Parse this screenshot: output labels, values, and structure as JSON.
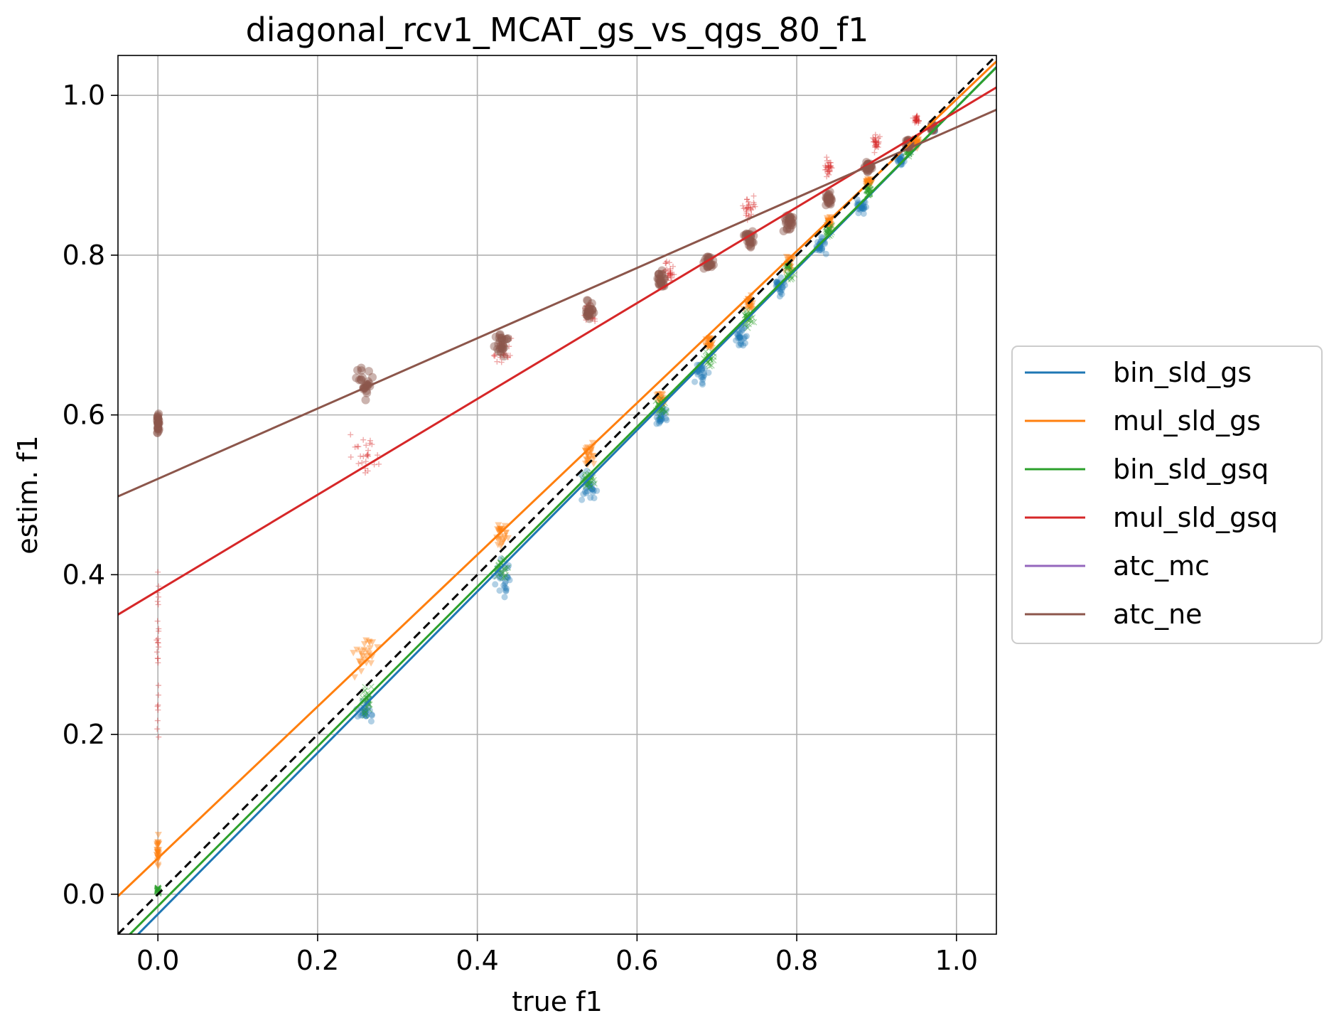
{
  "chart_data": {
    "type": "scatter",
    "title": "diagonal_rcv1_MCAT_gs_vs_qgs_80_f1",
    "xlabel": "true f1",
    "ylabel": "estim. f1",
    "xlim": [
      -0.05,
      1.05
    ],
    "ylim": [
      -0.05,
      1.05
    ],
    "x_ticks": [
      0.0,
      0.2,
      0.4,
      0.6,
      0.8,
      1.0
    ],
    "y_ticks": [
      0.0,
      0.2,
      0.4,
      0.6,
      0.8,
      1.0
    ],
    "x_tick_labels": [
      "0.0",
      "0.2",
      "0.4",
      "0.6",
      "0.8",
      "1.0"
    ],
    "y_tick_labels": [
      "0.0",
      "0.2",
      "0.4",
      "0.6",
      "0.8",
      "1.0"
    ],
    "grid": true,
    "legend_position": "right, outside plot",
    "diagonal_reference": {
      "style": "black dashed",
      "from": [
        -0.05,
        -0.05
      ],
      "to": [
        1.05,
        1.05
      ]
    },
    "series": [
      {
        "name": "bin_sld_gs",
        "color": "#1f77b4",
        "marker": "circle",
        "fit_line": {
          "slope": 1.01,
          "intercept": -0.025
        },
        "clusters": [
          [
            0.43,
            0.4,
            0.03
          ],
          [
            0.54,
            0.51,
            0.025
          ],
          [
            0.63,
            0.6,
            0.02
          ],
          [
            0.68,
            0.65,
            0.02
          ],
          [
            0.73,
            0.7,
            0.02
          ],
          [
            0.78,
            0.76,
            0.02
          ],
          [
            0.83,
            0.81,
            0.015
          ],
          [
            0.88,
            0.86,
            0.015
          ],
          [
            0.93,
            0.92,
            0.01
          ],
          [
            0.97,
            0.96,
            0.008
          ],
          [
            0.26,
            0.23,
            0.025
          ]
        ]
      },
      {
        "name": "mul_sld_gs",
        "color": "#ff7f0e",
        "marker": "triangle-down",
        "fit_line": {
          "slope": 0.95,
          "intercept": 0.045
        },
        "clusters": [
          [
            0.0,
            0.05,
            0.03
          ],
          [
            0.26,
            0.3,
            0.035
          ],
          [
            0.43,
            0.45,
            0.02
          ],
          [
            0.54,
            0.55,
            0.02
          ],
          [
            0.63,
            0.62,
            0.015
          ],
          [
            0.69,
            0.69,
            0.015
          ],
          [
            0.74,
            0.74,
            0.015
          ],
          [
            0.79,
            0.79,
            0.015
          ],
          [
            0.84,
            0.84,
            0.01
          ],
          [
            0.89,
            0.89,
            0.01
          ],
          [
            0.95,
            0.94,
            0.008
          ]
        ]
      },
      {
        "name": "bin_sld_gsq",
        "color": "#2ca02c",
        "marker": "x",
        "fit_line": {
          "slope": 1.0,
          "intercept": -0.015
        },
        "clusters": [
          [
            0.0,
            0.005,
            0.005
          ],
          [
            0.26,
            0.24,
            0.025
          ],
          [
            0.43,
            0.41,
            0.02
          ],
          [
            0.54,
            0.52,
            0.02
          ],
          [
            0.63,
            0.61,
            0.015
          ],
          [
            0.69,
            0.67,
            0.015
          ],
          [
            0.74,
            0.72,
            0.015
          ],
          [
            0.79,
            0.78,
            0.015
          ],
          [
            0.84,
            0.83,
            0.012
          ],
          [
            0.89,
            0.88,
            0.01
          ],
          [
            0.94,
            0.93,
            0.008
          ]
        ]
      },
      {
        "name": "mul_sld_gsq",
        "color": "#d62728",
        "marker": "plus",
        "fit_line": {
          "slope": 0.6,
          "intercept": 0.38
        },
        "clusters": [
          [
            0.0,
            0.3,
            0.07
          ],
          [
            0.26,
            0.55,
            0.04
          ],
          [
            0.43,
            0.68,
            0.025
          ],
          [
            0.54,
            0.73,
            0.02
          ],
          [
            0.64,
            0.78,
            0.02
          ],
          [
            0.74,
            0.86,
            0.02
          ],
          [
            0.84,
            0.91,
            0.015
          ],
          [
            0.9,
            0.94,
            0.015
          ],
          [
            0.95,
            0.97,
            0.01
          ]
        ]
      },
      {
        "name": "atc_mc",
        "color": "#9467bd",
        "marker": "circle",
        "fit_line": null,
        "clusters": []
      },
      {
        "name": "atc_ne",
        "color": "#8c564b",
        "marker": "hexagon",
        "fit_line": {
          "slope": 0.44,
          "intercept": 0.52
        },
        "clusters": [
          [
            0.0,
            0.59,
            0.02
          ],
          [
            0.26,
            0.64,
            0.025
          ],
          [
            0.43,
            0.69,
            0.02
          ],
          [
            0.54,
            0.73,
            0.015
          ],
          [
            0.63,
            0.77,
            0.015
          ],
          [
            0.69,
            0.79,
            0.015
          ],
          [
            0.74,
            0.82,
            0.015
          ],
          [
            0.79,
            0.84,
            0.015
          ],
          [
            0.84,
            0.87,
            0.012
          ],
          [
            0.89,
            0.91,
            0.01
          ],
          [
            0.94,
            0.94,
            0.008
          ],
          [
            0.97,
            0.96,
            0.006
          ]
        ]
      }
    ]
  }
}
